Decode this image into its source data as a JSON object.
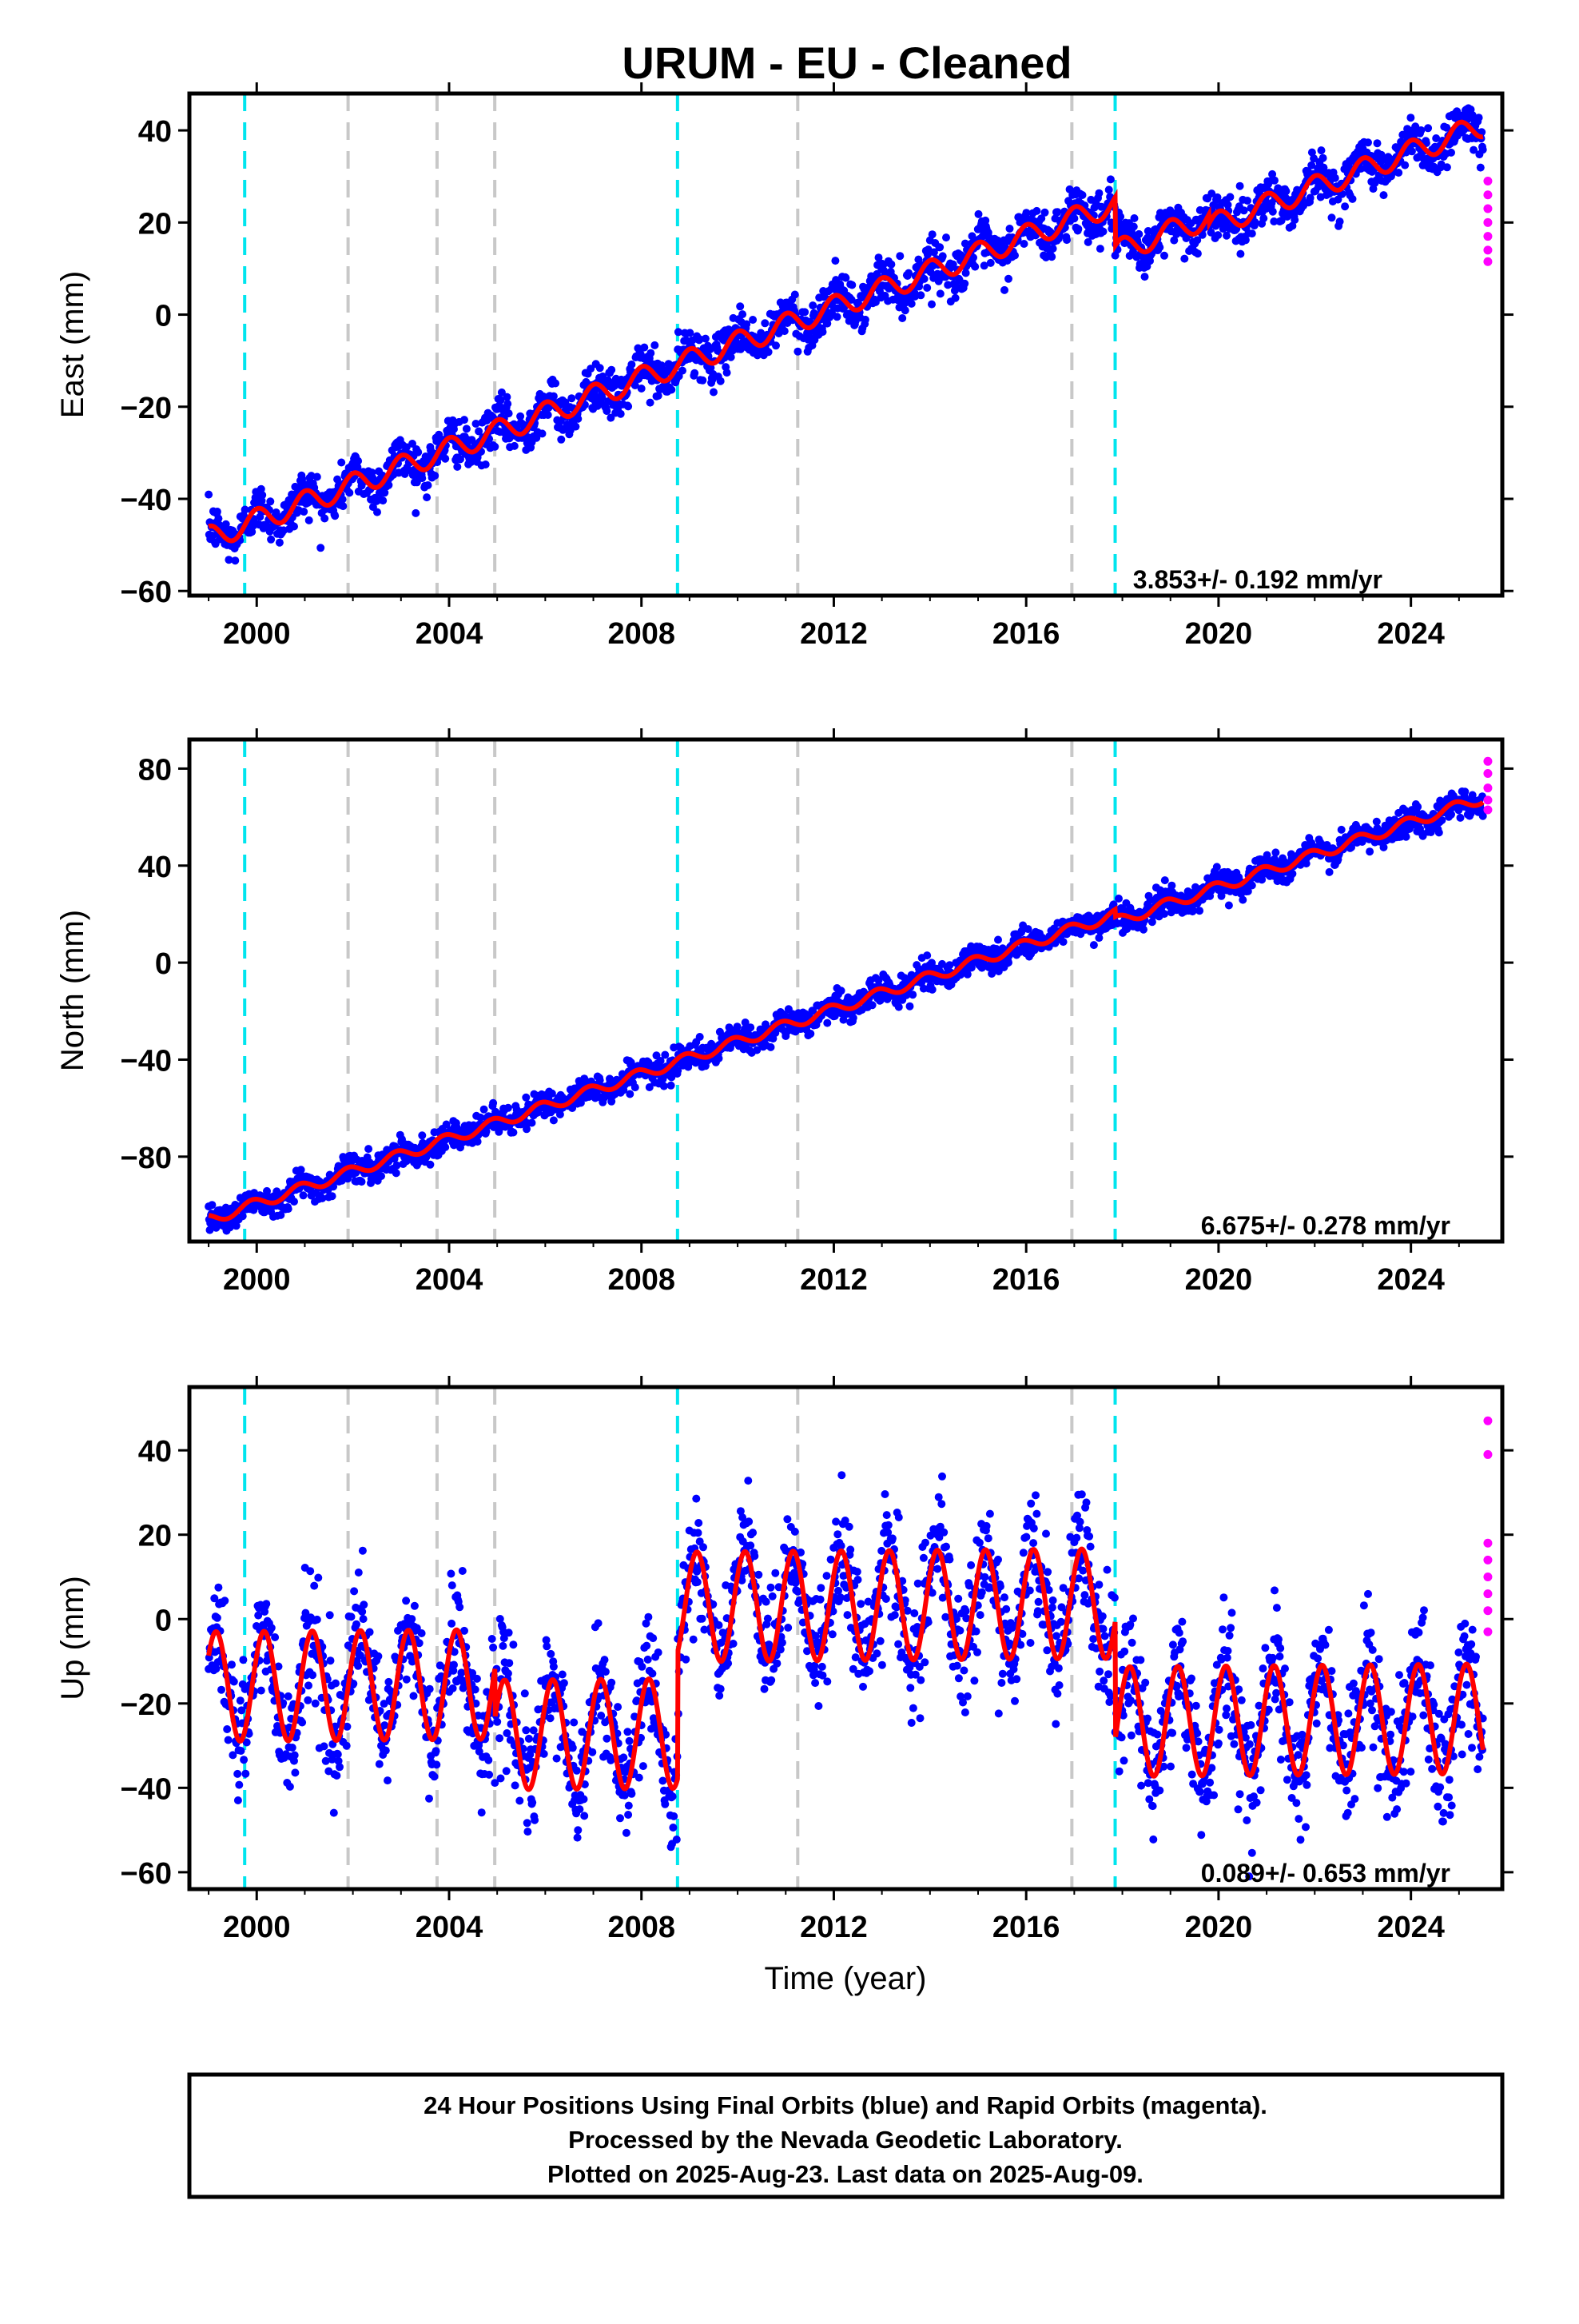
{
  "title": "URUM  - EU - Cleaned",
  "footer": {
    "line1": "24 Hour Positions Using Final Orbits (blue) and Rapid Orbits (magenta).",
    "line2": "Processed by the Nevada Geodetic Laboratory.",
    "line3": "Plotted on 2025-Aug-23. Last data on 2025-Aug-09."
  },
  "xlabel": "Time (year)",
  "colors": {
    "final": "#0000ff",
    "rapid": "#ff00ff",
    "model": "#ff0000",
    "equipment_change": "#00e5ee",
    "other_event": "#c8c8c8"
  },
  "chart_data": [
    {
      "type": "scatter",
      "name": "east",
      "ylabel": "East (mm)",
      "xlim": [
        1998.6,
        2025.9
      ],
      "ylim": [
        -61,
        48
      ],
      "xticks": [
        2000,
        2004,
        2008,
        2012,
        2016,
        2020,
        2024
      ],
      "yticks": [
        -60,
        -40,
        -20,
        0,
        20,
        40
      ],
      "rate_label": "3.853+/- 0.192 mm/yr",
      "equipment_change_years": [
        1999.75,
        2008.75,
        2017.85
      ],
      "other_event_years": [
        2001.9,
        2003.75,
        2004.95,
        2011.25,
        2016.95
      ],
      "model": {
        "start": 1999.0,
        "end": 2025.5,
        "start_value": -48.5,
        "rate": 3.853,
        "annual_amplitude": 2.5,
        "annual_phase": 1.5,
        "offsets": [
          {
            "year": 2017.85,
            "value": -10.5
          },
          {
            "year": 2019.8,
            "value": -2
          }
        ]
      },
      "scatter_sigma": 2.5,
      "rapid_points": [
        [
          2025.6,
          29
        ],
        [
          2025.6,
          26
        ],
        [
          2025.6,
          23
        ],
        [
          2025.6,
          20
        ],
        [
          2025.6,
          17
        ],
        [
          2025.6,
          14
        ],
        [
          2025.6,
          11.5
        ]
      ]
    },
    {
      "type": "scatter",
      "name": "north",
      "ylabel": "North (mm)",
      "xlim": [
        1998.6,
        2025.9
      ],
      "ylim": [
        -115,
        92
      ],
      "xticks": [
        2000,
        2004,
        2008,
        2012,
        2016,
        2020,
        2024
      ],
      "yticks": [
        -80,
        -40,
        0,
        40,
        80
      ],
      "rate_label": "6.675+/- 0.278 mm/yr",
      "equipment_change_years": [
        1999.75,
        2008.75,
        2017.85
      ],
      "other_event_years": [
        2001.9,
        2003.75,
        2004.95,
        2011.25,
        2016.95
      ],
      "model": {
        "start": 1999.0,
        "end": 2025.5,
        "start_value": -106,
        "rate": 6.675,
        "annual_amplitude": 2.2,
        "annual_phase": 2.2,
        "offsets": [
          {
            "year": 2017.85,
            "value": -3
          }
        ]
      },
      "scatter_sigma": 2.8,
      "rapid_points": [
        [
          2025.6,
          83
        ],
        [
          2025.6,
          78
        ],
        [
          2025.6,
          72
        ],
        [
          2025.6,
          67
        ],
        [
          2025.6,
          63
        ]
      ]
    },
    {
      "type": "scatter",
      "name": "up",
      "ylabel": "Up (mm)",
      "xlabel": "Time (year)",
      "xlim": [
        1998.6,
        2025.9
      ],
      "ylim": [
        -64,
        55
      ],
      "xticks": [
        2000,
        2004,
        2008,
        2012,
        2016,
        2020,
        2024
      ],
      "yticks": [
        -60,
        -40,
        -20,
        0,
        20,
        40
      ],
      "rate_label": "0.089+/- 0.653 mm/yr",
      "equipment_change_years": [
        1999.75,
        2008.75,
        2017.85
      ],
      "other_event_years": [
        2001.9,
        2003.75,
        2004.95,
        2011.25,
        2016.95
      ],
      "model": {
        "start": 1999.0,
        "end": 2025.5,
        "start_value": -16,
        "rate": 0.089,
        "annual_amplitude": 13,
        "annual_phase": 0.6,
        "offsets": [
          {
            "year": 2004.95,
            "value": -12
          },
          {
            "year": 2008.75,
            "value": 30
          },
          {
            "year": 2017.85,
            "value": -28
          }
        ]
      },
      "scatter_sigma": 7,
      "rapid_points": [
        [
          2025.6,
          47
        ],
        [
          2025.6,
          39
        ],
        [
          2025.6,
          18
        ],
        [
          2025.6,
          14
        ],
        [
          2025.6,
          10
        ],
        [
          2025.6,
          6
        ],
        [
          2025.6,
          2
        ],
        [
          2025.6,
          -3
        ]
      ]
    }
  ]
}
